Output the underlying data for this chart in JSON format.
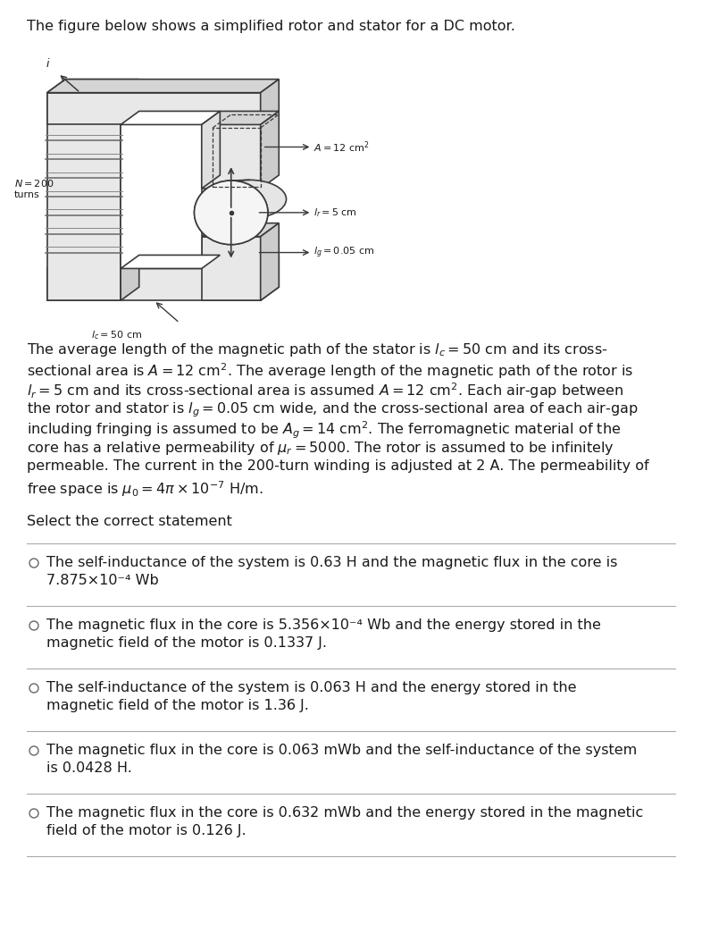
{
  "title_text": "The figure below shows a simplified rotor and stator for a DC motor.",
  "bg_color": "#ffffff",
  "text_color": "#1a1a1a",
  "font_size": 11.5,
  "divider_color": "#aaaaaa",
  "paragraph_lines": [
    "The average length of the magnetic path of the stator is $l_c = 50$ cm and its cross-",
    "sectional area is $A = 12$ cm$^2$. The average length of the magnetic path of the rotor is",
    "$l_r = 5$ cm and its cross-sectional area is assumed $A = 12$ cm$^2$. Each air-gap between",
    "the rotor and stator is $l_g = 0.05$ cm wide, and the cross-sectional area of each air-gap",
    "including fringing is assumed to be $A_g = 14$ cm$^2$. The ferromagnetic material of the",
    "core has a relative permeability of $\\mu_r = 5000$. The rotor is assumed to be infinitely",
    "permeable. The current in the 200-turn winding is adjusted at 2 A. The permeability of",
    "free space is $\\mu_0 = 4\\pi \\times 10^{-7}$ H/m."
  ],
  "select_text": "Select the correct statement",
  "options": [
    [
      "The self-inductance of the system is 0.63 H and the magnetic flux in the core is",
      "7.875×10⁻⁴ Wb"
    ],
    [
      "The magnetic flux in the core is 5.356×10⁻⁴ Wb and the energy stored in the",
      "magnetic field of the motor is 0.1337 J."
    ],
    [
      "The self-inductance of the system is 0.063 H and the energy stored in the",
      "magnetic field of the motor is 1.36 J."
    ],
    [
      "The magnetic flux in the core is 0.063 mWb and the self-inductance of the system",
      "is 0.0428 H."
    ],
    [
      "The magnetic flux in the core is 0.632 mWb and the energy stored in the magnetic",
      "field of the motor is 0.126 J."
    ]
  ]
}
